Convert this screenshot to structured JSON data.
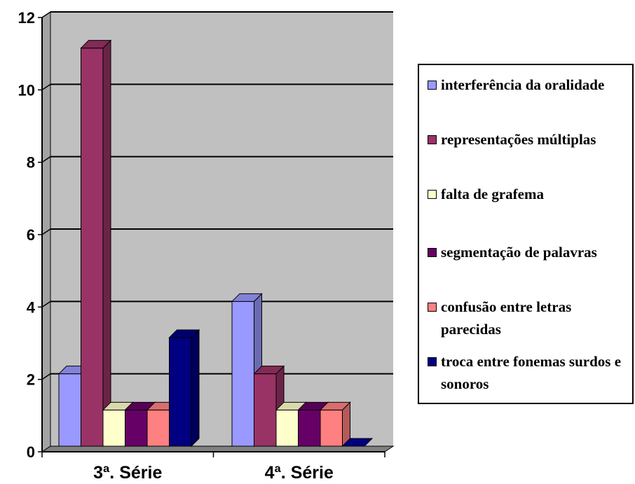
{
  "chart_data": {
    "type": "bar",
    "style": "3d-clustered-column",
    "categories": [
      "3ª. Série",
      "4ª. Série"
    ],
    "series": [
      {
        "name": "interferência da oralidade",
        "color": "#9999FF",
        "values": [
          2,
          4
        ]
      },
      {
        "name": "representações múltiplas",
        "color": "#993366",
        "values": [
          11,
          2
        ]
      },
      {
        "name": "falta de grafema",
        "color": "#FFFFCC",
        "values": [
          1,
          1
        ]
      },
      {
        "name": "segmentação de palavras",
        "color": "#660066",
        "values": [
          1,
          1
        ]
      },
      {
        "name": "confusão entre letras parecidas",
        "color": "#FF8080",
        "values": [
          1,
          1
        ]
      },
      {
        "name": "troca entre fonemas surdos e sonoros",
        "color": "#000080",
        "values": [
          3,
          0
        ]
      }
    ],
    "yticks": [
      "0",
      "2",
      "4",
      "6",
      "8",
      "10",
      "12"
    ],
    "ylim": [
      0,
      12
    ],
    "grid": true,
    "legend_position": "right",
    "plot_background": "#C0C0C0"
  }
}
